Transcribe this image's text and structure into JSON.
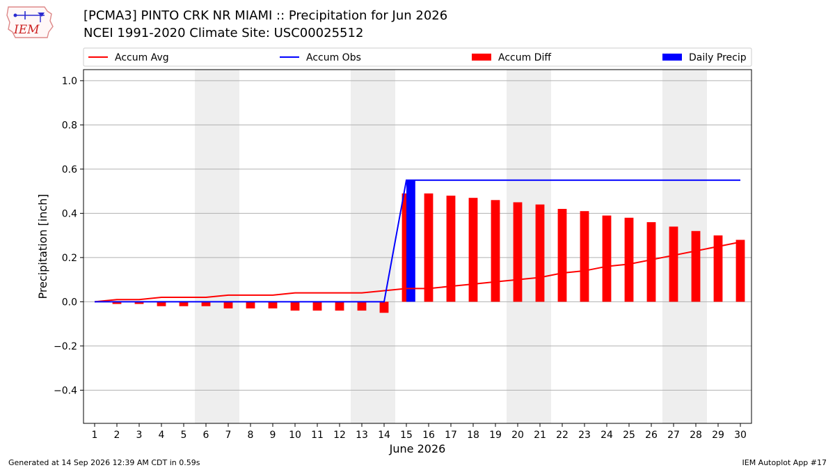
{
  "header": {
    "title_line1": "[PCMA3] PINTO CRK NR MIAMI :: Precipitation for Jun 2026",
    "title_line2": "NCEI 1991-2020 Climate Site: USC00025512",
    "logo_text": "IEM"
  },
  "footer": {
    "generated": "Generated at 14 Sep 2026 12:39 AM CDT in 0.59s",
    "app": "IEM Autoplot App #17"
  },
  "colors": {
    "avg": "#ff0000",
    "obs": "#0000ff",
    "diff": "#ff0000",
    "daily": "#0000ff",
    "weekend_shade": "#eeeeee",
    "grid": "#b0b0b0"
  },
  "chart_data": {
    "type": "bar",
    "title": "[PCMA3] PINTO CRK NR MIAMI :: Precipitation for Jun 2026",
    "xlabel": "June 2026",
    "ylabel": "Precipitation [inch]",
    "ylim": [
      -0.55,
      1.05
    ],
    "xlim": [
      0.5,
      30.5
    ],
    "yticks": [
      -0.4,
      -0.2,
      0.0,
      0.2,
      0.4,
      0.6,
      0.8,
      1.0
    ],
    "ytick_labels": [
      "−0.4",
      "−0.2",
      "0.0",
      "0.2",
      "0.4",
      "0.6",
      "0.8",
      "1.0"
    ],
    "x": [
      1,
      2,
      3,
      4,
      5,
      6,
      7,
      8,
      9,
      10,
      11,
      12,
      13,
      14,
      15,
      16,
      17,
      18,
      19,
      20,
      21,
      22,
      23,
      24,
      25,
      26,
      27,
      28,
      29,
      30
    ],
    "xtick_labels": [
      "1",
      "2",
      "3",
      "4",
      "5",
      "6",
      "7",
      "8",
      "9",
      "10",
      "11",
      "12",
      "13",
      "14",
      "15",
      "16",
      "17",
      "18",
      "19",
      "20",
      "21",
      "22",
      "23",
      "24",
      "25",
      "26",
      "27",
      "28",
      "29",
      "30"
    ],
    "grid": "horizontal",
    "legend_position": "top",
    "weekend_days": [
      6,
      7,
      13,
      14,
      20,
      21,
      27,
      28
    ],
    "series": [
      {
        "name": "Accum Avg",
        "type": "line",
        "values": [
          0.0,
          0.01,
          0.01,
          0.02,
          0.02,
          0.02,
          0.03,
          0.03,
          0.03,
          0.04,
          0.04,
          0.04,
          0.04,
          0.05,
          0.06,
          0.06,
          0.07,
          0.08,
          0.09,
          0.1,
          0.11,
          0.13,
          0.14,
          0.16,
          0.17,
          0.19,
          0.21,
          0.23,
          0.25,
          0.27
        ]
      },
      {
        "name": "Accum Obs",
        "type": "line",
        "values": [
          0,
          0,
          0,
          0,
          0,
          0,
          0,
          0,
          0,
          0,
          0,
          0,
          0,
          0,
          0.55,
          0.55,
          0.55,
          0.55,
          0.55,
          0.55,
          0.55,
          0.55,
          0.55,
          0.55,
          0.55,
          0.55,
          0.55,
          0.55,
          0.55,
          0.55
        ]
      },
      {
        "name": "Accum Diff",
        "type": "bar",
        "values": [
          0.0,
          -0.01,
          -0.01,
          -0.02,
          -0.02,
          -0.02,
          -0.03,
          -0.03,
          -0.03,
          -0.04,
          -0.04,
          -0.04,
          -0.04,
          -0.05,
          0.49,
          0.49,
          0.48,
          0.47,
          0.46,
          0.45,
          0.44,
          0.42,
          0.41,
          0.39,
          0.38,
          0.36,
          0.34,
          0.32,
          0.3,
          0.28
        ]
      },
      {
        "name": "Daily Precip",
        "type": "bar",
        "values": [
          0,
          0,
          0,
          0,
          0,
          0,
          0,
          0,
          0,
          0,
          0,
          0,
          0,
          0,
          0.55,
          0,
          0,
          0,
          0,
          0,
          0,
          0,
          0,
          0,
          0,
          0,
          0,
          0,
          0,
          0
        ]
      }
    ]
  }
}
